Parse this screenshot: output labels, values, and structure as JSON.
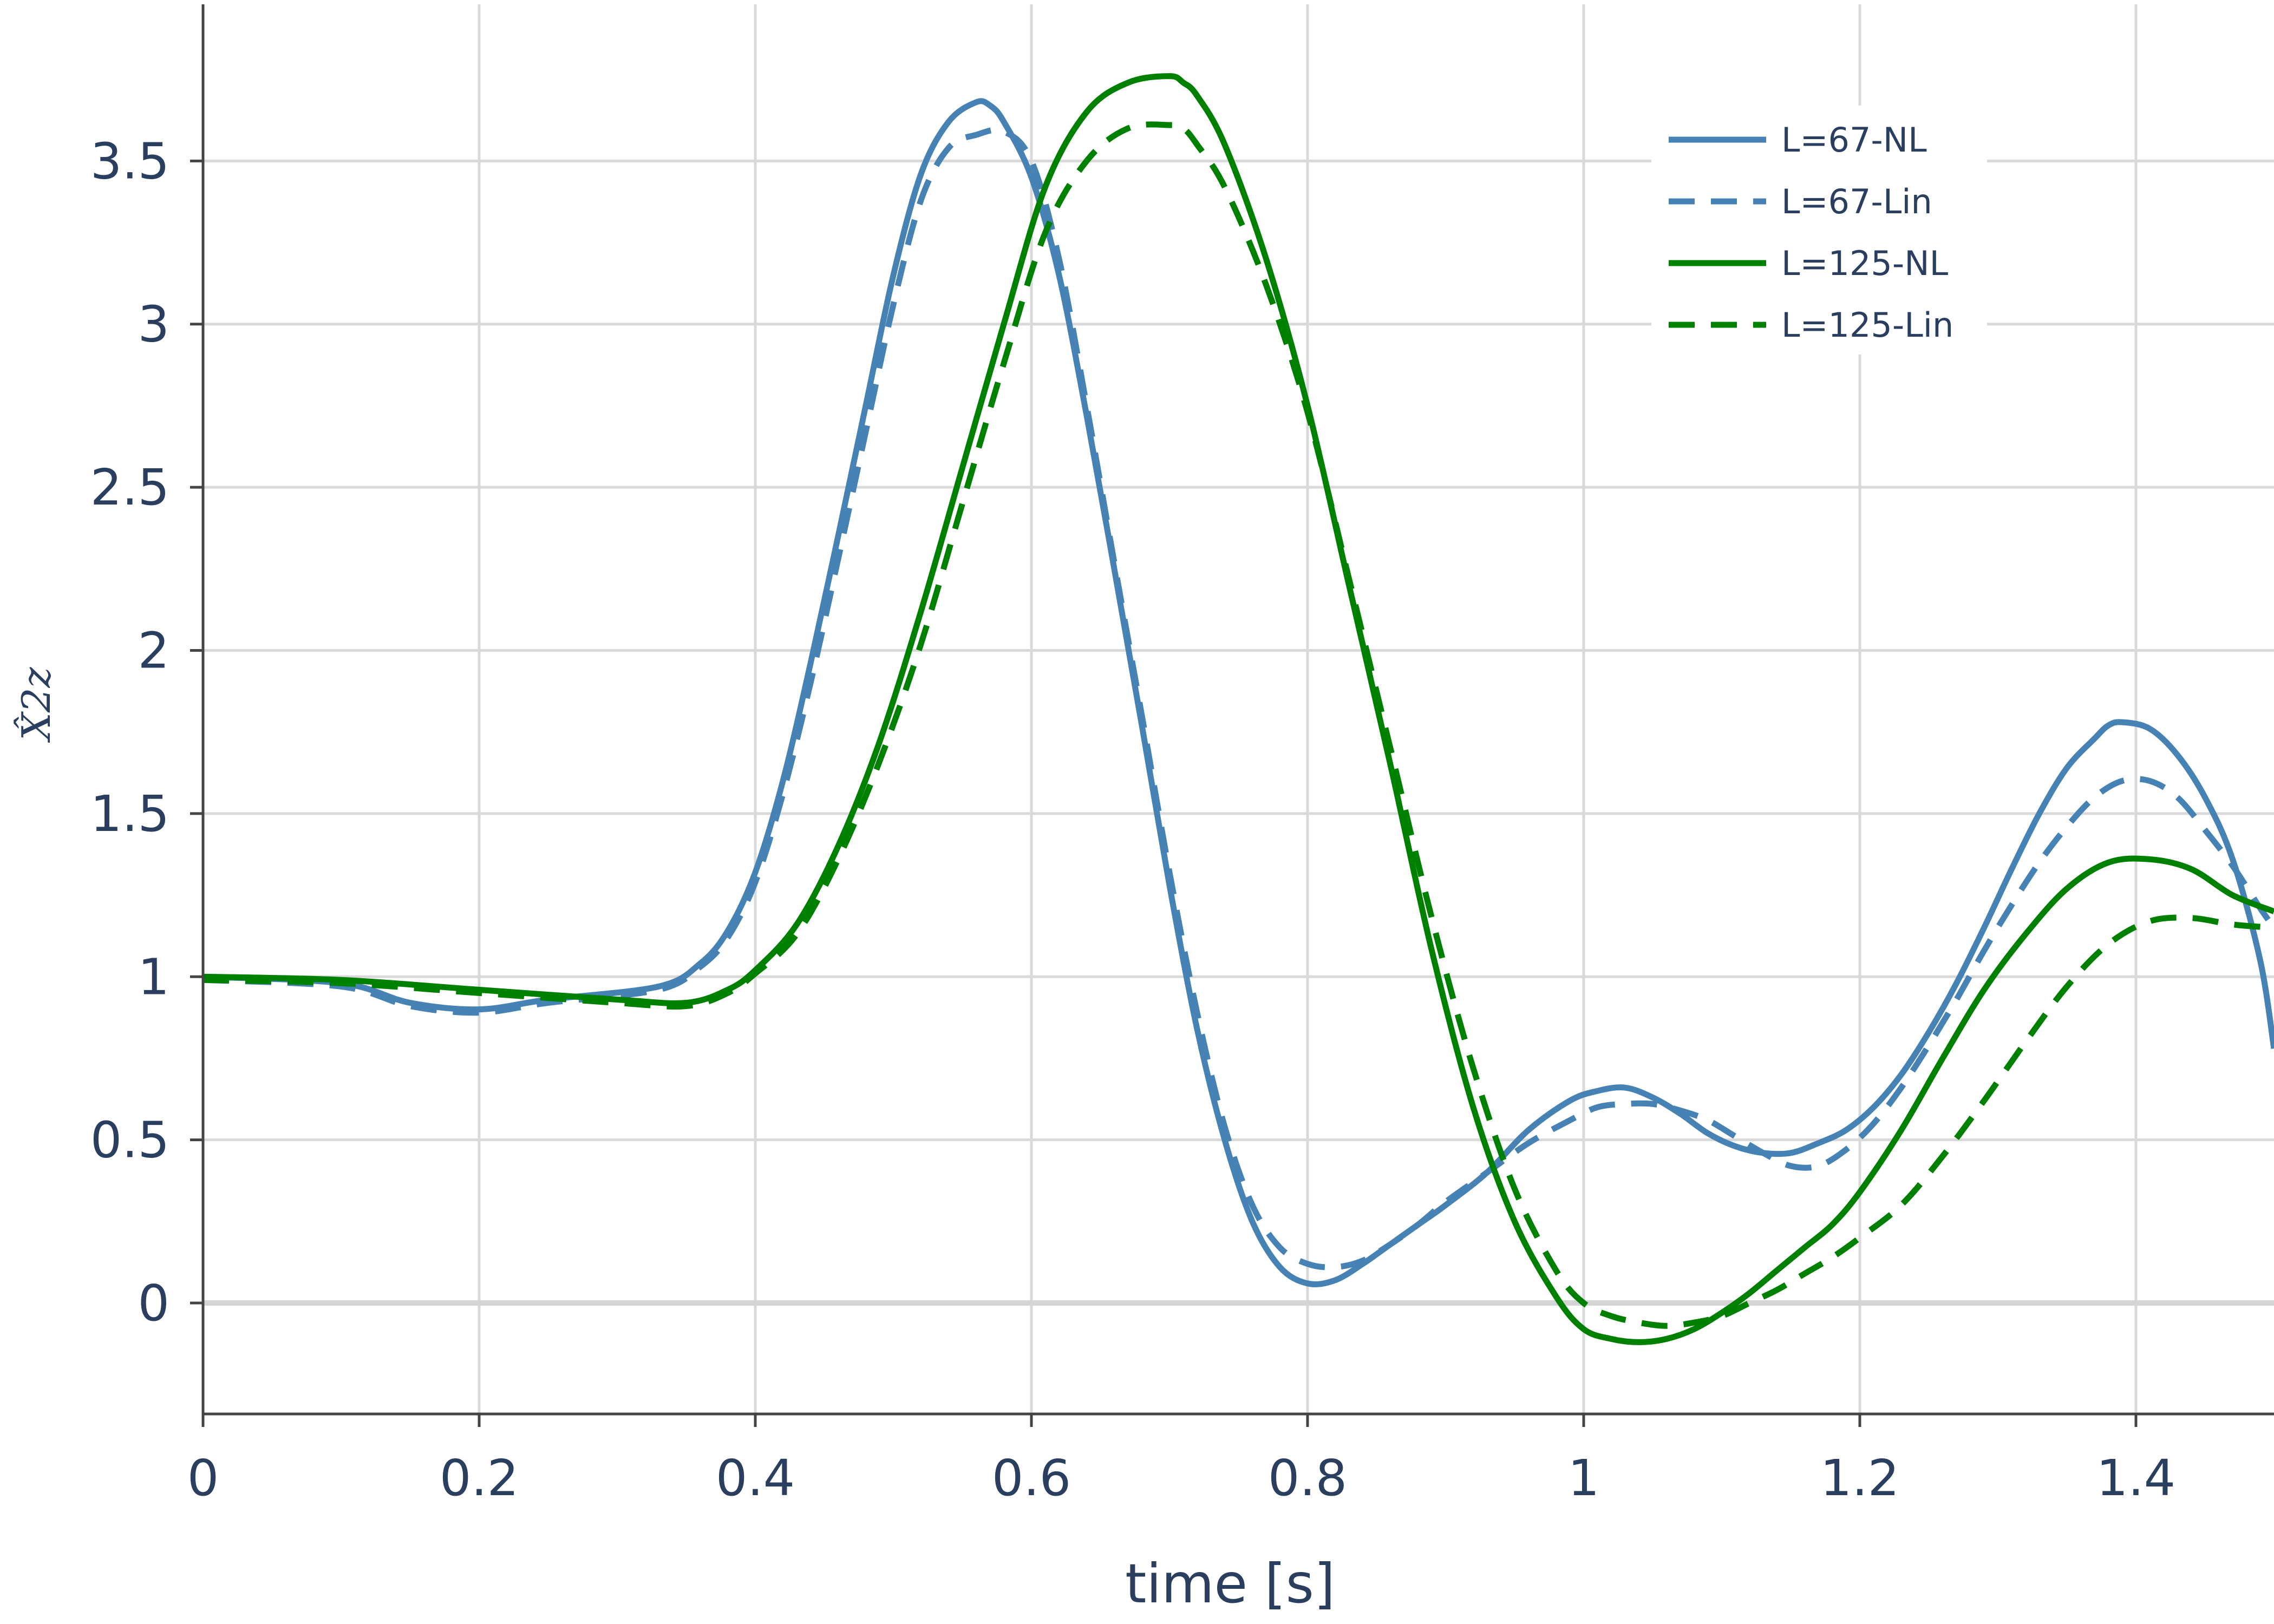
{
  "chart_data": {
    "type": "line",
    "xlabel": "time [s]",
    "ylabel": "X̂2z",
    "xlim": [
      0,
      1.5
    ],
    "ylim": [
      -0.34,
      3.98
    ],
    "x_ticks": [
      0,
      0.2,
      0.4,
      0.6,
      0.8,
      1,
      1.2,
      1.4
    ],
    "y_ticks": [
      0,
      0.5,
      1,
      1.5,
      2,
      2.5,
      3,
      3.5
    ],
    "grid": true,
    "legend_position": "top-right",
    "colors": {
      "blue": "#4682b4",
      "green": "#008000",
      "grid": "#d9d9d9",
      "zeroline": "#d4d4d4",
      "text": "#2a3f5f"
    },
    "series": [
      {
        "name": "L=67-NL",
        "color": "#4682b4",
        "dash": "solid",
        "x": [
          0,
          0.1,
          0.15,
          0.2,
          0.25,
          0.33,
          0.36,
          0.38,
          0.4,
          0.42,
          0.44,
          0.46,
          0.48,
          0.5,
          0.52,
          0.54,
          0.56,
          0.57,
          0.58,
          0.6,
          0.62,
          0.64,
          0.66,
          0.68,
          0.7,
          0.72,
          0.74,
          0.76,
          0.78,
          0.8,
          0.82,
          0.84,
          0.86,
          0.88,
          0.9,
          0.93,
          0.96,
          0.99,
          1.01,
          1.03,
          1.05,
          1.07,
          1.09,
          1.11,
          1.13,
          1.15,
          1.17,
          1.19,
          1.21,
          1.23,
          1.25,
          1.27,
          1.29,
          1.31,
          1.33,
          1.35,
          1.37,
          1.38,
          1.39,
          1.41,
          1.43,
          1.45,
          1.47,
          1.49,
          1.5
        ],
        "y": [
          1.0,
          0.98,
          0.92,
          0.9,
          0.93,
          0.97,
          1.04,
          1.14,
          1.32,
          1.6,
          1.96,
          2.35,
          2.75,
          3.15,
          3.46,
          3.62,
          3.68,
          3.67,
          3.62,
          3.45,
          3.15,
          2.72,
          2.25,
          1.77,
          1.28,
          0.84,
          0.5,
          0.25,
          0.11,
          0.06,
          0.07,
          0.12,
          0.18,
          0.24,
          0.3,
          0.4,
          0.53,
          0.62,
          0.65,
          0.66,
          0.63,
          0.58,
          0.52,
          0.48,
          0.46,
          0.46,
          0.49,
          0.53,
          0.6,
          0.7,
          0.83,
          0.98,
          1.15,
          1.33,
          1.5,
          1.64,
          1.73,
          1.77,
          1.78,
          1.76,
          1.68,
          1.55,
          1.36,
          1.05,
          0.78
        ]
      },
      {
        "name": "L=67-Lin",
        "color": "#4682b4",
        "dash": "dash",
        "x": [
          0,
          0.1,
          0.15,
          0.2,
          0.25,
          0.33,
          0.36,
          0.38,
          0.4,
          0.42,
          0.44,
          0.46,
          0.48,
          0.5,
          0.52,
          0.54,
          0.56,
          0.58,
          0.6,
          0.62,
          0.64,
          0.66,
          0.68,
          0.7,
          0.72,
          0.74,
          0.76,
          0.78,
          0.8,
          0.82,
          0.84,
          0.86,
          0.88,
          0.9,
          0.93,
          0.96,
          0.99,
          1.01,
          1.03,
          1.05,
          1.07,
          1.09,
          1.11,
          1.13,
          1.15,
          1.17,
          1.19,
          1.21,
          1.23,
          1.25,
          1.27,
          1.29,
          1.31,
          1.33,
          1.35,
          1.37,
          1.39,
          1.41,
          1.43,
          1.45,
          1.47,
          1.49,
          1.5
        ],
        "y": [
          0.99,
          0.97,
          0.91,
          0.89,
          0.92,
          0.96,
          1.03,
          1.12,
          1.29,
          1.56,
          1.9,
          2.28,
          2.67,
          3.06,
          3.38,
          3.54,
          3.58,
          3.59,
          3.5,
          3.2,
          2.75,
          2.27,
          1.8,
          1.32,
          0.89,
          0.54,
          0.3,
          0.17,
          0.12,
          0.11,
          0.13,
          0.18,
          0.24,
          0.31,
          0.4,
          0.49,
          0.56,
          0.6,
          0.61,
          0.61,
          0.59,
          0.56,
          0.51,
          0.46,
          0.42,
          0.42,
          0.47,
          0.55,
          0.66,
          0.79,
          0.93,
          1.08,
          1.22,
          1.35,
          1.46,
          1.55,
          1.6,
          1.6,
          1.55,
          1.45,
          1.34,
          1.21,
          1.15
        ]
      },
      {
        "name": "L=125-NL",
        "color": "#008000",
        "dash": "solid",
        "x": [
          0,
          0.1,
          0.2,
          0.3,
          0.35,
          0.38,
          0.4,
          0.43,
          0.46,
          0.49,
          0.52,
          0.55,
          0.58,
          0.61,
          0.64,
          0.67,
          0.7,
          0.71,
          0.72,
          0.74,
          0.77,
          0.8,
          0.83,
          0.86,
          0.89,
          0.92,
          0.95,
          0.98,
          1.0,
          1.02,
          1.04,
          1.06,
          1.08,
          1.1,
          1.12,
          1.14,
          1.16,
          1.18,
          1.2,
          1.23,
          1.26,
          1.29,
          1.32,
          1.35,
          1.38,
          1.41,
          1.44,
          1.47,
          1.5
        ],
        "y": [
          1.0,
          0.99,
          0.96,
          0.93,
          0.92,
          0.96,
          1.02,
          1.16,
          1.4,
          1.72,
          2.12,
          2.56,
          3.0,
          3.42,
          3.65,
          3.74,
          3.76,
          3.74,
          3.7,
          3.55,
          3.2,
          2.75,
          2.2,
          1.65,
          1.08,
          0.6,
          0.25,
          0.02,
          -0.08,
          -0.11,
          -0.12,
          -0.11,
          -0.08,
          -0.03,
          0.03,
          0.1,
          0.17,
          0.24,
          0.34,
          0.53,
          0.75,
          0.96,
          1.13,
          1.27,
          1.35,
          1.36,
          1.33,
          1.25,
          1.2
        ]
      },
      {
        "name": "L=125-Lin",
        "color": "#008000",
        "dash": "dash",
        "x": [
          0,
          0.1,
          0.2,
          0.3,
          0.35,
          0.38,
          0.4,
          0.43,
          0.46,
          0.49,
          0.52,
          0.55,
          0.58,
          0.61,
          0.64,
          0.67,
          0.7,
          0.71,
          0.72,
          0.74,
          0.77,
          0.8,
          0.83,
          0.86,
          0.89,
          0.92,
          0.95,
          0.98,
          1.0,
          1.02,
          1.04,
          1.06,
          1.08,
          1.1,
          1.12,
          1.14,
          1.16,
          1.18,
          1.2,
          1.23,
          1.26,
          1.29,
          1.32,
          1.35,
          1.38,
          1.41,
          1.44,
          1.47,
          1.5
        ],
        "y": [
          0.99,
          0.98,
          0.95,
          0.92,
          0.91,
          0.95,
          1.01,
          1.13,
          1.36,
          1.66,
          2.02,
          2.45,
          2.88,
          3.28,
          3.5,
          3.6,
          3.61,
          3.6,
          3.55,
          3.42,
          3.12,
          2.73,
          2.22,
          1.7,
          1.18,
          0.72,
          0.35,
          0.1,
          0.0,
          -0.04,
          -0.06,
          -0.07,
          -0.06,
          -0.04,
          0.0,
          0.04,
          0.09,
          0.14,
          0.2,
          0.3,
          0.45,
          0.62,
          0.8,
          0.97,
          1.1,
          1.17,
          1.18,
          1.16,
          1.15
        ]
      }
    ]
  }
}
